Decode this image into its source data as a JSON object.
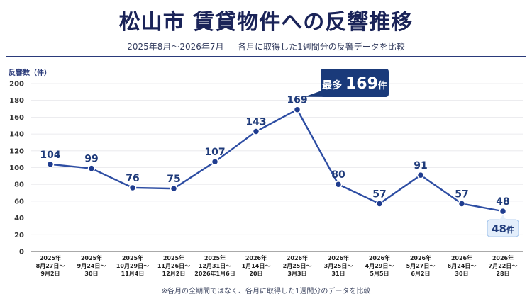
{
  "header": {
    "title": "松山市 賃貸物件への反響推移",
    "subtitle": "2025年8月～2026年7月 ｜ 各月に取得した1週間分の反響データを比較"
  },
  "footnote": "※各月の全期間ではなく、各月に取得した1週間分のデータを比較",
  "colors": {
    "line": "#2d4da3",
    "callout_dark": "#1a3a7a",
    "callout_light": "#e3eefb"
  },
  "chart_data": {
    "type": "line",
    "ylabel": "反響数（件）",
    "ylim": [
      0,
      200
    ],
    "yticks": [
      0,
      20,
      40,
      60,
      80,
      100,
      120,
      140,
      160,
      180,
      200
    ],
    "grid": true,
    "categories": [
      [
        "2025年",
        "8月27日～",
        "9月2日"
      ],
      [
        "2025年",
        "9月24日～",
        "30日"
      ],
      [
        "2025年",
        "10月29日～",
        "11月4日"
      ],
      [
        "2025年",
        "11月26日～",
        "12月2日"
      ],
      [
        "2025年",
        "12月31日～",
        "2026年1月6日"
      ],
      [
        "2026年",
        "1月14日～",
        "20日"
      ],
      [
        "2026年",
        "2月25日～",
        "3月3日"
      ],
      [
        "2026年",
        "3月25日～",
        "31日"
      ],
      [
        "2026年",
        "4月29日～",
        "5月5日"
      ],
      [
        "2026年",
        "5月27日～",
        "6月2日"
      ],
      [
        "2026年",
        "6月24日～",
        "30日"
      ],
      [
        "2026年",
        "7月22日～",
        "28日"
      ]
    ],
    "values": [
      104,
      99,
      76,
      75,
      107,
      143,
      169,
      80,
      57,
      91,
      57,
      48
    ],
    "annotations": {
      "max": {
        "index": 6,
        "prefix": "最多",
        "value": "169",
        "suffix": "件"
      },
      "last": {
        "index": 11,
        "value": "48",
        "suffix": "件"
      }
    }
  }
}
